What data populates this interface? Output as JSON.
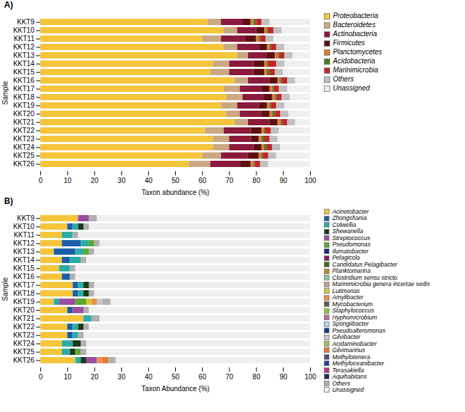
{
  "chart_data": [
    {
      "type": "bar",
      "orientation": "horizontal",
      "stacked": true,
      "title": "A)",
      "xlabel": "Taxon abundance (%)",
      "ylabel": "Sample",
      "categories": [
        "KKT9",
        "KKT10",
        "KKT11",
        "KKT12",
        "KKT13",
        "KKT14",
        "KKT15",
        "KKT16",
        "KKT17",
        "KKT18",
        "KKT19",
        "KKT20",
        "KKT21",
        "KKT22",
        "KKT23",
        "KKT24",
        "KKT25",
        "KKT26"
      ],
      "xlim": [
        0,
        100
      ],
      "xticks": [
        0,
        10,
        20,
        30,
        40,
        50,
        60,
        70,
        80,
        90,
        100
      ],
      "legend": "right",
      "grid": false,
      "series": [
        {
          "name": "Proteobacteria",
          "color": "#F5C53A",
          "values": [
            62,
            68,
            60,
            68,
            73,
            64,
            63,
            72,
            68,
            69,
            67,
            69,
            72,
            61,
            64,
            64,
            60,
            55
          ]
        },
        {
          "name": "Bacteroidetes",
          "color": "#C9A882",
          "values": [
            5,
            5,
            7,
            5,
            4,
            6,
            7,
            5,
            6,
            6,
            6,
            5,
            5,
            7,
            6,
            6,
            7,
            8
          ]
        },
        {
          "name": "Actinobacteria",
          "color": "#8B1A3C",
          "values": [
            8,
            7,
            9,
            8,
            7,
            9,
            9,
            8,
            8,
            8,
            8,
            8,
            8,
            10,
            8,
            9,
            10,
            11
          ]
        },
        {
          "name": "Firmicutes",
          "color": "#5C1010",
          "values": [
            3,
            3,
            4,
            3,
            3,
            4,
            4,
            3,
            3,
            3,
            3,
            3,
            3,
            4,
            3,
            3,
            4,
            4
          ]
        },
        {
          "name": "Planctomycetes",
          "color": "#E07838",
          "values": [
            1,
            1,
            1,
            1,
            1,
            1,
            1,
            1,
            1,
            1,
            1,
            1,
            1,
            1,
            1,
            1,
            1,
            1
          ]
        },
        {
          "name": "Acidobacteria",
          "color": "#4A7A28",
          "values": [
            1,
            0.5,
            0.5,
            0.5,
            0.5,
            0.5,
            1,
            0.5,
            0.5,
            0.5,
            0.5,
            1,
            0.5,
            0.5,
            1,
            1,
            0.5,
            0.5
          ]
        },
        {
          "name": "Marinimicrobia",
          "color": "#C02828",
          "values": [
            2,
            2,
            2,
            2,
            2,
            3,
            2,
            2,
            2,
            2,
            2,
            2,
            2,
            2,
            2,
            2,
            2,
            2
          ]
        },
        {
          "name": "Others",
          "color": "#C0C0C0",
          "values": [
            3,
            3,
            3,
            3,
            3,
            3,
            3,
            3,
            3,
            3,
            3,
            3,
            3,
            3,
            3,
            3,
            3,
            3
          ]
        },
        {
          "name": "Unassigned",
          "color": "#EFEFEF",
          "values": [
            15,
            10.5,
            13.5,
            9.5,
            6.5,
            9.5,
            10,
            5.5,
            8.5,
            7.5,
            9.5,
            8,
            5.5,
            11.5,
            12,
            11,
            12.5,
            15.5
          ]
        }
      ]
    },
    {
      "type": "bar",
      "orientation": "horizontal",
      "stacked": true,
      "title": "B)",
      "xlabel": "Taxon Abundance (%)",
      "ylabel": "Sample",
      "categories": [
        "KKT9",
        "KKT10",
        "KKT11",
        "KKT12",
        "KKT13",
        "KKT14",
        "KKT15",
        "KKT16",
        "KKT17",
        "KKT18",
        "KKT19",
        "KKT20",
        "KKT21",
        "KKT22",
        "KKT23",
        "KKT24",
        "KKT25",
        "KKT26"
      ],
      "xlim": [
        0,
        100
      ],
      "xticks": [
        0,
        10,
        20,
        30,
        40,
        50,
        60,
        70,
        80,
        90,
        100
      ],
      "legend": "right",
      "grid": false,
      "series": [
        {
          "name": "Acinetobacter",
          "color": "#F5C53A",
          "values": [
            14,
            10,
            8,
            8,
            5,
            8,
            7,
            8,
            12,
            12,
            5,
            10,
            16,
            10,
            10,
            8,
            8,
            13
          ]
        },
        {
          "name": "Zhongshania",
          "color": "#1A5FA8",
          "values": [
            0,
            2,
            0,
            7,
            8,
            3,
            0,
            3,
            2,
            2,
            0,
            2,
            0,
            2,
            2,
            0,
            0,
            0
          ]
        },
        {
          "name": "Colwellia",
          "color": "#2AADA8",
          "values": [
            0,
            2,
            4,
            3,
            3,
            4,
            4,
            0,
            2,
            2,
            2,
            0,
            3,
            2,
            2,
            4,
            3,
            2
          ]
        },
        {
          "name": "Shewanella",
          "color": "#1A3A1A",
          "values": [
            0,
            2,
            0,
            0,
            0,
            0,
            0,
            0,
            2,
            2,
            0,
            0,
            0,
            2,
            0,
            3,
            2,
            2
          ]
        },
        {
          "name": "Streptococcus",
          "color": "#9B4DA0",
          "values": [
            4,
            0,
            0,
            0,
            0,
            0,
            0,
            0,
            0,
            0,
            6,
            4,
            0,
            0,
            0,
            0,
            0,
            4
          ]
        },
        {
          "name": "Pseudomonas",
          "color": "#5DA832",
          "values": [
            0,
            0,
            0,
            2,
            2,
            0,
            0,
            0,
            0,
            0,
            4,
            0,
            0,
            0,
            0,
            0,
            2,
            0
          ]
        },
        {
          "name": "Ilumatobacter",
          "color": "#1A2A8B",
          "values": [
            0,
            0,
            0,
            0,
            0,
            0,
            0,
            0,
            0,
            0,
            0,
            0,
            0,
            0,
            0,
            0,
            0,
            0
          ]
        },
        {
          "name": "Pelagicola",
          "color": "#8B1A6A",
          "values": [
            0,
            0,
            0,
            0,
            0,
            0,
            0,
            0,
            0,
            0,
            0,
            0,
            0,
            0,
            0,
            0,
            0,
            0
          ]
        },
        {
          "name": "Candidatus Pelagibacter",
          "color": "#3A6A1A",
          "values": [
            0,
            0,
            0,
            0,
            0,
            0,
            0,
            0,
            0,
            0,
            0,
            0,
            0,
            0,
            0,
            0,
            0,
            0
          ]
        },
        {
          "name": "Planktomarina",
          "color": "#B88A2A",
          "values": [
            0,
            0,
            0,
            0,
            0,
            0,
            0,
            0,
            0,
            0,
            0,
            0,
            0,
            0,
            0,
            0,
            0,
            0
          ]
        },
        {
          "name": "Clostridium sensu stricto",
          "color": "#80C8A0",
          "values": [
            0,
            0,
            0,
            0,
            0,
            0,
            0,
            0,
            0,
            0,
            0,
            0,
            0,
            0,
            0,
            0,
            0,
            0
          ]
        },
        {
          "name": "Marinimicrobia genera incertae sedis",
          "color": "#C8A090",
          "values": [
            0,
            0,
            0,
            0,
            0,
            0,
            0,
            0,
            0,
            0,
            0,
            0,
            0,
            0,
            0,
            0,
            0,
            0
          ]
        },
        {
          "name": "Lutimonas",
          "color": "#D4C832",
          "values": [
            0,
            0,
            0,
            0,
            0,
            0,
            0,
            0,
            0,
            0,
            2,
            0,
            0,
            0,
            0,
            0,
            0,
            0
          ]
        },
        {
          "name": "Amylibacter",
          "color": "#E89050",
          "values": [
            0,
            0,
            0,
            0,
            0,
            0,
            0,
            0,
            0,
            0,
            2,
            0,
            0,
            0,
            0,
            0,
            0,
            2
          ]
        },
        {
          "name": "Mycobacterium",
          "color": "#5A5A5A",
          "values": [
            0,
            0,
            0,
            0,
            0,
            0,
            0,
            0,
            0,
            0,
            0,
            0,
            0,
            0,
            0,
            0,
            0,
            0
          ]
        },
        {
          "name": "Staphylococcus",
          "color": "#88C832",
          "values": [
            0,
            0,
            0,
            0,
            0,
            0,
            0,
            0,
            0,
            0,
            0,
            0,
            0,
            0,
            0,
            0,
            0,
            0
          ]
        },
        {
          "name": "Hyphomicrobium",
          "color": "#C86896",
          "values": [
            0,
            0,
            0,
            0,
            0,
            0,
            0,
            0,
            0,
            0,
            0,
            0,
            0,
            0,
            0,
            0,
            0,
            0
          ]
        },
        {
          "name": "Spongiibacter",
          "color": "#B0D8E8",
          "values": [
            0,
            0,
            0,
            0,
            0,
            0,
            0,
            0,
            0,
            0,
            0,
            0,
            0,
            0,
            0,
            0,
            0,
            0
          ]
        },
        {
          "name": "Pseudoalteromonas",
          "color": "#1A3A8B",
          "values": [
            0,
            0,
            0,
            0,
            0,
            0,
            0,
            0,
            0,
            0,
            0,
            0,
            0,
            0,
            0,
            0,
            0,
            0
          ]
        },
        {
          "name": "Gilvibacter",
          "color": "#C8C8C8",
          "values": [
            0,
            0,
            0,
            0,
            0,
            0,
            0,
            0,
            0,
            0,
            2,
            0,
            0,
            0,
            0,
            0,
            0,
            0
          ]
        },
        {
          "name": "Acidaminobacter",
          "color": "#90C850",
          "values": [
            0,
            0,
            0,
            0,
            0,
            0,
            0,
            0,
            0,
            0,
            0,
            0,
            0,
            0,
            0,
            0,
            0,
            0
          ]
        },
        {
          "name": "Gilvimarinus",
          "color": "#E87830",
          "values": [
            0,
            0,
            0,
            0,
            0,
            0,
            0,
            0,
            0,
            0,
            0,
            0,
            0,
            0,
            0,
            0,
            0,
            2
          ]
        },
        {
          "name": "Methylotenera",
          "color": "#4A4A8B",
          "values": [
            0,
            0,
            0,
            0,
            0,
            0,
            0,
            0,
            0,
            0,
            0,
            0,
            0,
            0,
            0,
            0,
            0,
            0
          ]
        },
        {
          "name": "Methyloceanibacter",
          "color": "#1A4A8B",
          "values": [
            0,
            0,
            0,
            0,
            0,
            0,
            0,
            0,
            0,
            0,
            0,
            0,
            0,
            0,
            0,
            0,
            0,
            0
          ]
        },
        {
          "name": "Terasakiella",
          "color": "#C03090",
          "values": [
            0,
            0,
            0,
            0,
            0,
            0,
            0,
            0,
            0,
            0,
            0,
            0,
            0,
            0,
            0,
            0,
            0,
            0
          ]
        },
        {
          "name": "Aquihabitans",
          "color": "#2A2A5A",
          "values": [
            0,
            0,
            0,
            0,
            0,
            0,
            0,
            0,
            0,
            0,
            0,
            0,
            0,
            0,
            0,
            0,
            0,
            0
          ]
        },
        {
          "name": "Others",
          "color": "#B0B0B0",
          "values": [
            3,
            2,
            2,
            2,
            2,
            2,
            2,
            2,
            2,
            2,
            3,
            2,
            3,
            2,
            2,
            2,
            2,
            3
          ]
        },
        {
          "name": "Unassigned",
          "color": "#EFEFEF",
          "values": [
            79,
            82,
            86,
            78,
            80,
            83,
            87,
            87,
            80,
            80,
            74,
            82,
            78,
            82,
            84,
            83,
            83,
            72
          ]
        }
      ]
    }
  ]
}
